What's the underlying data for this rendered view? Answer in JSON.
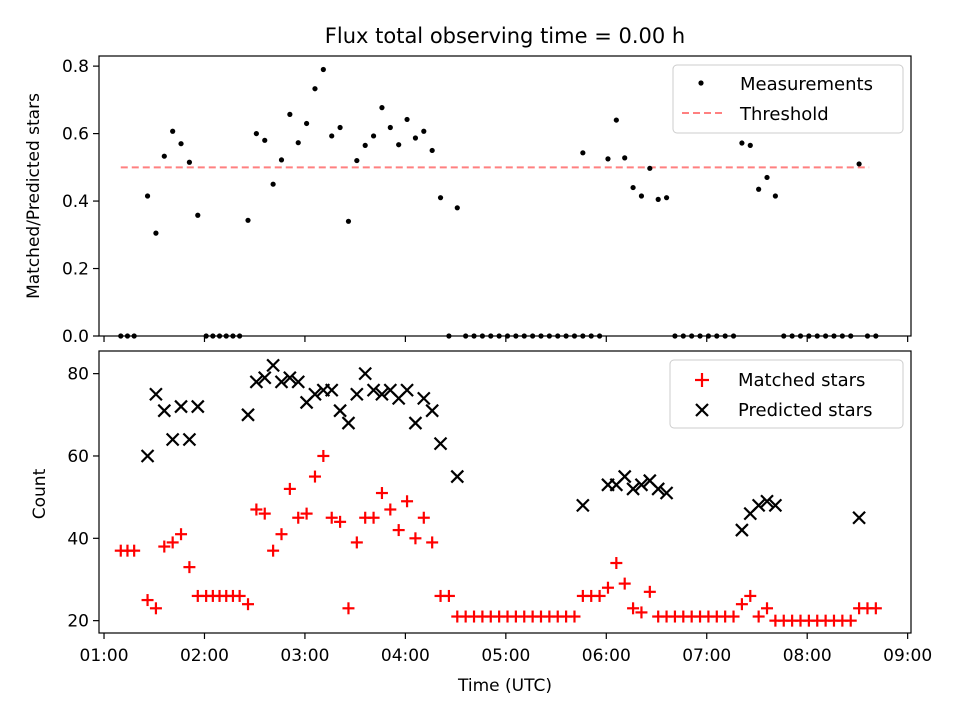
{
  "chart_data": [
    {
      "type": "scatter",
      "title": "Flux total observing time = 0.00 h",
      "ylabel": "Matched/Predicted stars",
      "xlabel": "",
      "xlim": [
        "00:57",
        "09:02"
      ],
      "ylim": [
        0,
        0.83
      ],
      "yticks": [
        "0.0",
        "0.2",
        "0.4",
        "0.6",
        "0.8"
      ],
      "legend": {
        "position": "top-right",
        "entries": [
          "Measurements",
          "Threshold"
        ]
      },
      "threshold": {
        "value": 0.5,
        "x": [
          "01:10",
          "08:37"
        ],
        "color": "#ff8080"
      },
      "series": [
        {
          "name": "Measurements",
          "color": "#000000",
          "points": [
            [
              "01:10",
              0
            ],
            [
              "01:14",
              0
            ],
            [
              "01:18",
              0
            ],
            [
              "01:26",
              0.415
            ],
            [
              "01:31",
              0.305
            ],
            [
              "01:36",
              0.533
            ],
            [
              "01:41",
              0.607
            ],
            [
              "01:46",
              0.57
            ],
            [
              "01:51",
              0.515
            ],
            [
              "01:56",
              0.358
            ],
            [
              "02:01",
              0
            ],
            [
              "02:05",
              0
            ],
            [
              "02:09",
              0
            ],
            [
              "02:13",
              0
            ],
            [
              "02:17",
              0
            ],
            [
              "02:21",
              0
            ],
            [
              "02:26",
              0.343
            ],
            [
              "02:31",
              0.6
            ],
            [
              "02:36",
              0.58
            ],
            [
              "02:41",
              0.45
            ],
            [
              "02:46",
              0.522
            ],
            [
              "02:51",
              0.657
            ],
            [
              "02:56",
              0.573
            ],
            [
              "03:01",
              0.63
            ],
            [
              "03:06",
              0.733
            ],
            [
              "03:11",
              0.79
            ],
            [
              "03:16",
              0.593
            ],
            [
              "03:21",
              0.618
            ],
            [
              "03:26",
              0.34
            ],
            [
              "03:31",
              0.52
            ],
            [
              "03:36",
              0.565
            ],
            [
              "03:41",
              0.593
            ],
            [
              "03:46",
              0.677
            ],
            [
              "03:51",
              0.618
            ],
            [
              "03:56",
              0.567
            ],
            [
              "04:01",
              0.642
            ],
            [
              "04:06",
              0.587
            ],
            [
              "04:11",
              0.607
            ],
            [
              "04:16",
              0.55
            ],
            [
              "04:21",
              0.41
            ],
            [
              "04:31",
              0.38
            ],
            [
              "04:26",
              0
            ],
            [
              "04:36",
              0
            ],
            [
              "04:41",
              0
            ],
            [
              "04:46",
              0
            ],
            [
              "04:51",
              0
            ],
            [
              "04:56",
              0
            ],
            [
              "05:01",
              0
            ],
            [
              "05:06",
              0
            ],
            [
              "05:11",
              0
            ],
            [
              "05:16",
              0
            ],
            [
              "05:21",
              0
            ],
            [
              "05:26",
              0
            ],
            [
              "05:31",
              0
            ],
            [
              "05:36",
              0
            ],
            [
              "05:41",
              0
            ],
            [
              "05:46",
              0
            ],
            [
              "05:46",
              0.543
            ],
            [
              "05:51",
              0
            ],
            [
              "05:56",
              0
            ],
            [
              "06:01",
              0.525
            ],
            [
              "06:06",
              0.64
            ],
            [
              "06:11",
              0.528
            ],
            [
              "06:16",
              0.44
            ],
            [
              "06:21",
              0.415
            ],
            [
              "06:26",
              0.497
            ],
            [
              "06:31",
              0.405
            ],
            [
              "06:36",
              0.41
            ],
            [
              "06:41",
              0
            ],
            [
              "06:46",
              0
            ],
            [
              "06:51",
              0
            ],
            [
              "06:56",
              0
            ],
            [
              "07:01",
              0
            ],
            [
              "07:06",
              0
            ],
            [
              "07:11",
              0
            ],
            [
              "07:16",
              0
            ],
            [
              "07:21",
              0.572
            ],
            [
              "07:26",
              0.565
            ],
            [
              "07:31",
              0.435
            ],
            [
              "07:36",
              0.47
            ],
            [
              "07:41",
              0.415
            ],
            [
              "07:46",
              0
            ],
            [
              "07:51",
              0
            ],
            [
              "07:56",
              0
            ],
            [
              "08:01",
              0
            ],
            [
              "08:06",
              0
            ],
            [
              "08:11",
              0
            ],
            [
              "08:16",
              0
            ],
            [
              "08:21",
              0
            ],
            [
              "08:26",
              0
            ],
            [
              "08:31",
              0.51
            ],
            [
              "08:36",
              0
            ],
            [
              "08:41",
              0
            ]
          ]
        }
      ]
    },
    {
      "type": "scatter",
      "title": "",
      "ylabel": "Count",
      "xlabel": "Time (UTC)",
      "xlim": [
        "00:57",
        "09:02"
      ],
      "ylim": [
        17,
        85.5
      ],
      "yticks": [
        "20",
        "40",
        "60",
        "80"
      ],
      "xticks": [
        "01:00",
        "02:00",
        "03:00",
        "04:00",
        "05:00",
        "06:00",
        "07:00",
        "08:00",
        "09:00"
      ],
      "legend": {
        "position": "top-right",
        "entries": [
          "Matched stars",
          "Predicted stars"
        ]
      },
      "series": [
        {
          "name": "Matched stars",
          "color": "#ff0000",
          "marker": "plus",
          "points": [
            [
              "01:10",
              37
            ],
            [
              "01:14",
              37
            ],
            [
              "01:18",
              37
            ],
            [
              "01:26",
              25
            ],
            [
              "01:31",
              23
            ],
            [
              "01:36",
              38
            ],
            [
              "01:41",
              39
            ],
            [
              "01:46",
              41
            ],
            [
              "01:51",
              33
            ],
            [
              "01:56",
              26
            ],
            [
              "02:01",
              26
            ],
            [
              "02:05",
              26
            ],
            [
              "02:09",
              26
            ],
            [
              "02:13",
              26
            ],
            [
              "02:17",
              26
            ],
            [
              "02:21",
              26
            ],
            [
              "02:26",
              24
            ],
            [
              "02:31",
              47
            ],
            [
              "02:36",
              46
            ],
            [
              "02:41",
              37
            ],
            [
              "02:46",
              41
            ],
            [
              "02:51",
              52
            ],
            [
              "02:56",
              45
            ],
            [
              "03:01",
              46
            ],
            [
              "03:06",
              55
            ],
            [
              "03:11",
              60
            ],
            [
              "03:16",
              45
            ],
            [
              "03:21",
              44
            ],
            [
              "03:26",
              23
            ],
            [
              "03:31",
              39
            ],
            [
              "03:36",
              45
            ],
            [
              "03:41",
              45
            ],
            [
              "03:46",
              51
            ],
            [
              "03:51",
              47
            ],
            [
              "03:56",
              42
            ],
            [
              "04:01",
              49
            ],
            [
              "04:06",
              40
            ],
            [
              "04:11",
              45
            ],
            [
              "04:16",
              39
            ],
            [
              "04:21",
              26
            ],
            [
              "04:26",
              26
            ],
            [
              "04:31",
              21
            ],
            [
              "04:36",
              21
            ],
            [
              "04:41",
              21
            ],
            [
              "04:46",
              21
            ],
            [
              "04:51",
              21
            ],
            [
              "04:56",
              21
            ],
            [
              "05:01",
              21
            ],
            [
              "05:06",
              21
            ],
            [
              "05:11",
              21
            ],
            [
              "05:16",
              21
            ],
            [
              "05:21",
              21
            ],
            [
              "05:26",
              21
            ],
            [
              "05:31",
              21
            ],
            [
              "05:36",
              21
            ],
            [
              "05:41",
              21
            ],
            [
              "05:46",
              26
            ],
            [
              "05:51",
              26
            ],
            [
              "05:56",
              26
            ],
            [
              "06:01",
              28
            ],
            [
              "06:06",
              34
            ],
            [
              "06:11",
              29
            ],
            [
              "06:16",
              23
            ],
            [
              "06:21",
              22
            ],
            [
              "06:26",
              27
            ],
            [
              "06:31",
              21
            ],
            [
              "06:36",
              21
            ],
            [
              "06:41",
              21
            ],
            [
              "06:46",
              21
            ],
            [
              "06:51",
              21
            ],
            [
              "06:56",
              21
            ],
            [
              "07:01",
              21
            ],
            [
              "07:06",
              21
            ],
            [
              "07:11",
              21
            ],
            [
              "07:16",
              21
            ],
            [
              "07:21",
              24
            ],
            [
              "07:26",
              26
            ],
            [
              "07:31",
              21
            ],
            [
              "07:36",
              23
            ],
            [
              "07:41",
              20
            ],
            [
              "07:46",
              20
            ],
            [
              "07:51",
              20
            ],
            [
              "07:56",
              20
            ],
            [
              "08:01",
              20
            ],
            [
              "08:06",
              20
            ],
            [
              "08:11",
              20
            ],
            [
              "08:16",
              20
            ],
            [
              "08:21",
              20
            ],
            [
              "08:26",
              20
            ],
            [
              "08:31",
              23
            ],
            [
              "08:36",
              23
            ],
            [
              "08:41",
              23
            ]
          ]
        },
        {
          "name": "Predicted stars",
          "color": "#000000",
          "marker": "x",
          "points": [
            [
              "01:26",
              60
            ],
            [
              "01:31",
              75
            ],
            [
              "01:36",
              71
            ],
            [
              "01:41",
              64
            ],
            [
              "01:46",
              72
            ],
            [
              "01:51",
              64
            ],
            [
              "01:56",
              72
            ],
            [
              "02:26",
              70
            ],
            [
              "02:31",
              78
            ],
            [
              "02:36",
              79
            ],
            [
              "02:41",
              82
            ],
            [
              "02:46",
              78
            ],
            [
              "02:51",
              79
            ],
            [
              "02:56",
              78
            ],
            [
              "03:01",
              73
            ],
            [
              "03:06",
              75
            ],
            [
              "03:11",
              76
            ],
            [
              "03:16",
              76
            ],
            [
              "03:21",
              71
            ],
            [
              "03:26",
              68
            ],
            [
              "03:31",
              75
            ],
            [
              "03:36",
              80
            ],
            [
              "03:41",
              76
            ],
            [
              "03:46",
              75
            ],
            [
              "03:51",
              76
            ],
            [
              "03:56",
              74
            ],
            [
              "04:01",
              76
            ],
            [
              "04:06",
              68
            ],
            [
              "04:11",
              74
            ],
            [
              "04:16",
              71
            ],
            [
              "04:21",
              63
            ],
            [
              "04:31",
              55
            ],
            [
              "05:46",
              48
            ],
            [
              "06:01",
              53
            ],
            [
              "06:06",
              53
            ],
            [
              "06:11",
              55
            ],
            [
              "06:16",
              52
            ],
            [
              "06:21",
              53
            ],
            [
              "06:26",
              54
            ],
            [
              "06:31",
              52
            ],
            [
              "06:36",
              51
            ],
            [
              "07:21",
              42
            ],
            [
              "07:26",
              46
            ],
            [
              "07:31",
              48
            ],
            [
              "07:36",
              49
            ],
            [
              "07:41",
              48
            ],
            [
              "08:31",
              45
            ]
          ]
        }
      ]
    }
  ]
}
